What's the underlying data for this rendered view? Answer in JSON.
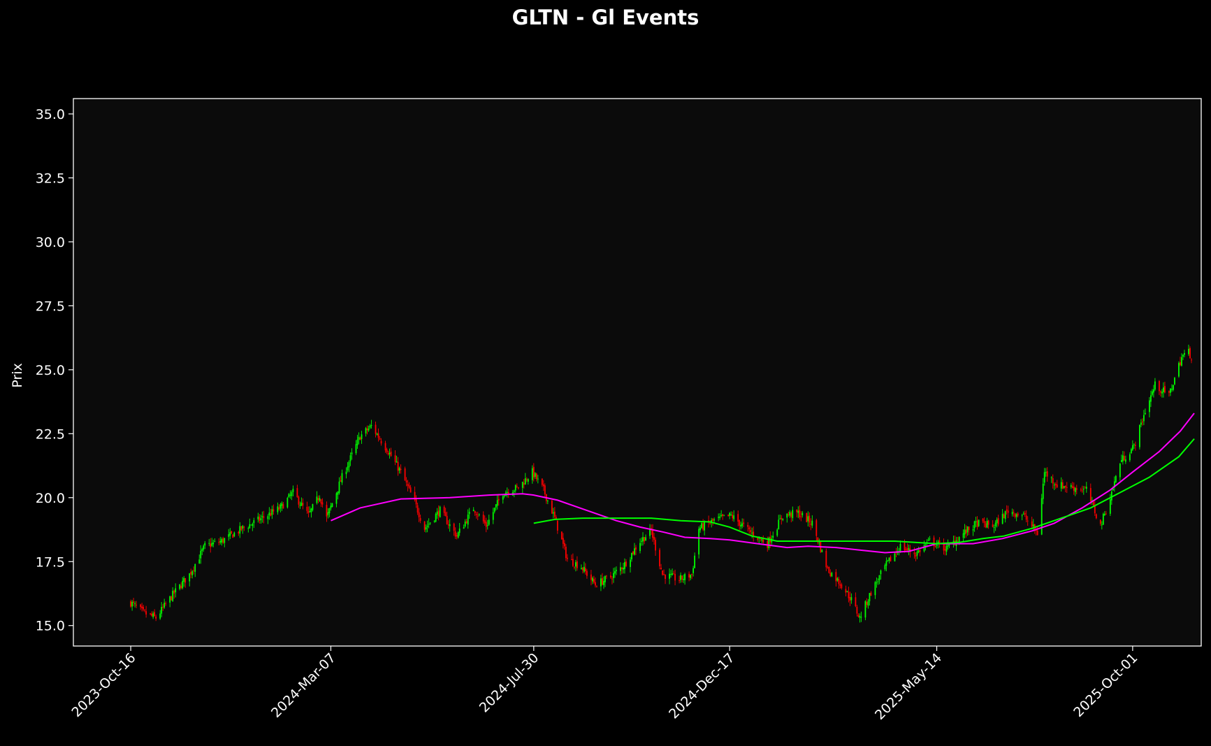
{
  "chart_data": {
    "type": "candlestick",
    "title": "GLTN - Gl Events",
    "xlabel": "",
    "ylabel": "Prix",
    "ylim": [
      14.2,
      35.6
    ],
    "xlim": [
      "2023-09-05",
      "2025-11-19"
    ],
    "x_ticks": [
      "2023-Oct-16",
      "2024-Mar-07",
      "2024-Jul-30",
      "2024-Dec-17",
      "2025-May-14",
      "2025-Oct-01"
    ],
    "y_ticks": [
      "15.0",
      "17.5",
      "20.0",
      "22.5",
      "25.0",
      "27.5",
      "30.0",
      "32.5",
      "35.0"
    ],
    "grid": false,
    "legend": "none",
    "colors": {
      "background": "#000000",
      "plot_area": "#0b0b0b",
      "axes": "#ffffff",
      "up": "#00ff00",
      "down": "#ff0000",
      "ma_short": "#ff00ff",
      "ma_long": "#00ff00"
    },
    "close_path": [
      [
        "2023-10-16",
        15.9
      ],
      [
        "2023-10-25",
        15.5
      ],
      [
        "2023-11-03",
        15.3
      ],
      [
        "2023-11-15",
        16.2
      ],
      [
        "2023-11-27",
        17.0
      ],
      [
        "2023-12-08",
        18.1
      ],
      [
        "2023-12-20",
        18.3
      ],
      [
        "2024-01-04",
        18.8
      ],
      [
        "2024-01-18",
        19.2
      ],
      [
        "2024-01-31",
        19.6
      ],
      [
        "2024-02-09",
        20.2
      ],
      [
        "2024-02-20",
        19.3
      ],
      [
        "2024-02-28",
        20.1
      ],
      [
        "2024-03-04",
        19.2
      ],
      [
        "2024-03-15",
        20.8
      ],
      [
        "2024-03-28",
        22.4
      ],
      [
        "2024-04-05",
        22.8
      ],
      [
        "2024-04-16",
        21.9
      ],
      [
        "2024-04-26",
        21.0
      ],
      [
        "2024-05-06",
        19.8
      ],
      [
        "2024-05-13",
        18.8
      ],
      [
        "2024-05-24",
        19.5
      ],
      [
        "2024-06-05",
        18.5
      ],
      [
        "2024-06-17",
        19.6
      ],
      [
        "2024-06-26",
        18.9
      ],
      [
        "2024-07-08",
        20.2
      ],
      [
        "2024-07-19",
        20.4
      ],
      [
        "2024-07-29",
        21.0
      ],
      [
        "2024-08-06",
        20.3
      ],
      [
        "2024-08-14",
        19.2
      ],
      [
        "2024-08-23",
        17.6
      ],
      [
        "2024-09-02",
        17.3
      ],
      [
        "2024-09-12",
        16.6
      ],
      [
        "2024-09-23",
        16.9
      ],
      [
        "2024-10-03",
        17.4
      ],
      [
        "2024-10-14",
        18.3
      ],
      [
        "2024-10-22",
        18.7
      ],
      [
        "2024-10-30",
        17.0
      ],
      [
        "2024-11-11",
        16.8
      ],
      [
        "2024-11-20",
        17.0
      ],
      [
        "2024-11-25",
        18.8
      ],
      [
        "2024-12-06",
        19.1
      ],
      [
        "2024-12-18",
        19.3
      ],
      [
        "2025-01-02",
        18.6
      ],
      [
        "2025-01-13",
        18.2
      ],
      [
        "2025-01-24",
        19.3
      ],
      [
        "2025-02-04",
        19.4
      ],
      [
        "2025-02-14",
        19.0
      ],
      [
        "2025-02-25",
        17.2
      ],
      [
        "2025-03-07",
        16.6
      ],
      [
        "2025-03-14",
        16.0
      ],
      [
        "2025-03-20",
        15.3
      ],
      [
        "2025-03-28",
        16.3
      ],
      [
        "2025-04-07",
        17.3
      ],
      [
        "2025-04-18",
        18.1
      ],
      [
        "2025-04-29",
        17.8
      ],
      [
        "2025-05-09",
        18.3
      ],
      [
        "2025-05-21",
        18.0
      ],
      [
        "2025-06-02",
        18.6
      ],
      [
        "2025-06-12",
        19.0
      ],
      [
        "2025-06-24",
        18.9
      ],
      [
        "2025-07-04",
        19.5
      ],
      [
        "2025-07-15",
        19.3
      ],
      [
        "2025-07-25",
        18.6
      ],
      [
        "2025-07-30",
        21.0
      ],
      [
        "2025-08-08",
        20.5
      ],
      [
        "2025-08-19",
        20.4
      ],
      [
        "2025-08-29",
        20.3
      ],
      [
        "2025-09-08",
        18.9
      ],
      [
        "2025-09-15",
        20.0
      ],
      [
        "2025-09-22",
        21.4
      ],
      [
        "2025-10-02",
        22.0
      ],
      [
        "2025-10-10",
        23.4
      ],
      [
        "2025-10-17",
        24.4
      ],
      [
        "2025-10-27",
        24.0
      ],
      [
        "2025-11-05",
        25.5
      ],
      [
        "2025-11-10",
        25.7
      ],
      [
        "2025-11-12",
        25.5
      ]
    ],
    "ma_short": [
      [
        "2024-03-07",
        19.1
      ],
      [
        "2024-03-28",
        19.6
      ],
      [
        "2024-04-26",
        19.95
      ],
      [
        "2024-05-31",
        20.0
      ],
      [
        "2024-06-28",
        20.1
      ],
      [
        "2024-07-22",
        20.15
      ],
      [
        "2024-07-30",
        20.1
      ],
      [
        "2024-08-16",
        19.9
      ],
      [
        "2024-09-06",
        19.5
      ],
      [
        "2024-09-27",
        19.1
      ],
      [
        "2024-10-14",
        18.85
      ],
      [
        "2024-10-31",
        18.65
      ],
      [
        "2024-11-15",
        18.45
      ],
      [
        "2024-12-03",
        18.4
      ],
      [
        "2024-12-17",
        18.35
      ],
      [
        "2025-01-06",
        18.2
      ],
      [
        "2025-01-27",
        18.05
      ],
      [
        "2025-02-11",
        18.1
      ],
      [
        "2025-03-03",
        18.05
      ],
      [
        "2025-03-20",
        17.95
      ],
      [
        "2025-04-07",
        17.85
      ],
      [
        "2025-04-24",
        17.9
      ],
      [
        "2025-05-14",
        18.2
      ],
      [
        "2025-06-09",
        18.2
      ],
      [
        "2025-06-30",
        18.4
      ],
      [
        "2025-07-21",
        18.7
      ],
      [
        "2025-08-06",
        19.0
      ],
      [
        "2025-08-26",
        19.6
      ],
      [
        "2025-09-15",
        20.3
      ],
      [
        "2025-10-01",
        21.0
      ],
      [
        "2025-10-20",
        21.8
      ],
      [
        "2025-11-04",
        22.6
      ],
      [
        "2025-11-14",
        23.3
      ]
    ],
    "ma_long": [
      [
        "2024-07-30",
        19.0
      ],
      [
        "2024-08-14",
        19.15
      ],
      [
        "2024-09-03",
        19.2
      ],
      [
        "2024-10-01",
        19.2
      ],
      [
        "2024-10-22",
        19.2
      ],
      [
        "2024-11-12",
        19.1
      ],
      [
        "2024-12-03",
        19.05
      ],
      [
        "2024-12-17",
        18.85
      ],
      [
        "2025-01-02",
        18.5
      ],
      [
        "2025-01-20",
        18.3
      ],
      [
        "2025-02-10",
        18.3
      ],
      [
        "2025-03-10",
        18.3
      ],
      [
        "2025-04-14",
        18.3
      ],
      [
        "2025-05-14",
        18.2
      ],
      [
        "2025-05-30",
        18.25
      ],
      [
        "2025-06-16",
        18.4
      ],
      [
        "2025-07-01",
        18.5
      ],
      [
        "2025-07-21",
        18.8
      ],
      [
        "2025-08-11",
        19.2
      ],
      [
        "2025-09-01",
        19.6
      ],
      [
        "2025-09-22",
        20.2
      ],
      [
        "2025-10-13",
        20.8
      ],
      [
        "2025-11-03",
        21.6
      ],
      [
        "2025-11-14",
        22.3
      ]
    ]
  }
}
